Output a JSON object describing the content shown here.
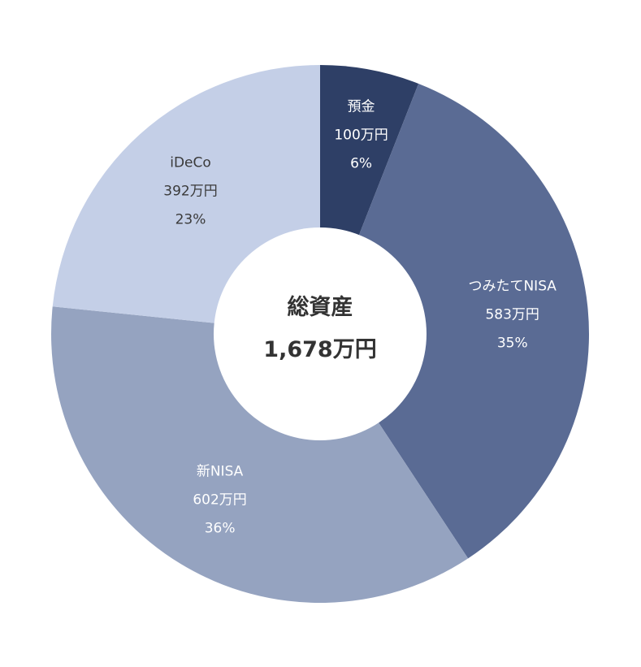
{
  "chart_data": {
    "type": "pie",
    "donut": true,
    "center": {
      "title": "総資産",
      "value": "1,678万円"
    },
    "slices": [
      {
        "label": "預金",
        "amount": "100万円",
        "percent_label": "6%",
        "value": 100,
        "color": "#2e3f66",
        "text_color": "#ffffff"
      },
      {
        "label": "つみたてNISA",
        "amount": "583万円",
        "percent_label": "35%",
        "value": 583,
        "color": "#5a6b94",
        "text_color": "#ffffff"
      },
      {
        "label": "新NISA",
        "amount": "602万円",
        "percent_label": "36%",
        "value": 602,
        "color": "#95a3c0",
        "text_color": "#ffffff"
      },
      {
        "label": "iDeCo",
        "amount": "392万円",
        "percent_label": "23%",
        "value": 392,
        "color": "#c4cfe7",
        "text_color": "#3a3a3a"
      }
    ],
    "start": "12 o'clock",
    "direction": "clockwise"
  }
}
